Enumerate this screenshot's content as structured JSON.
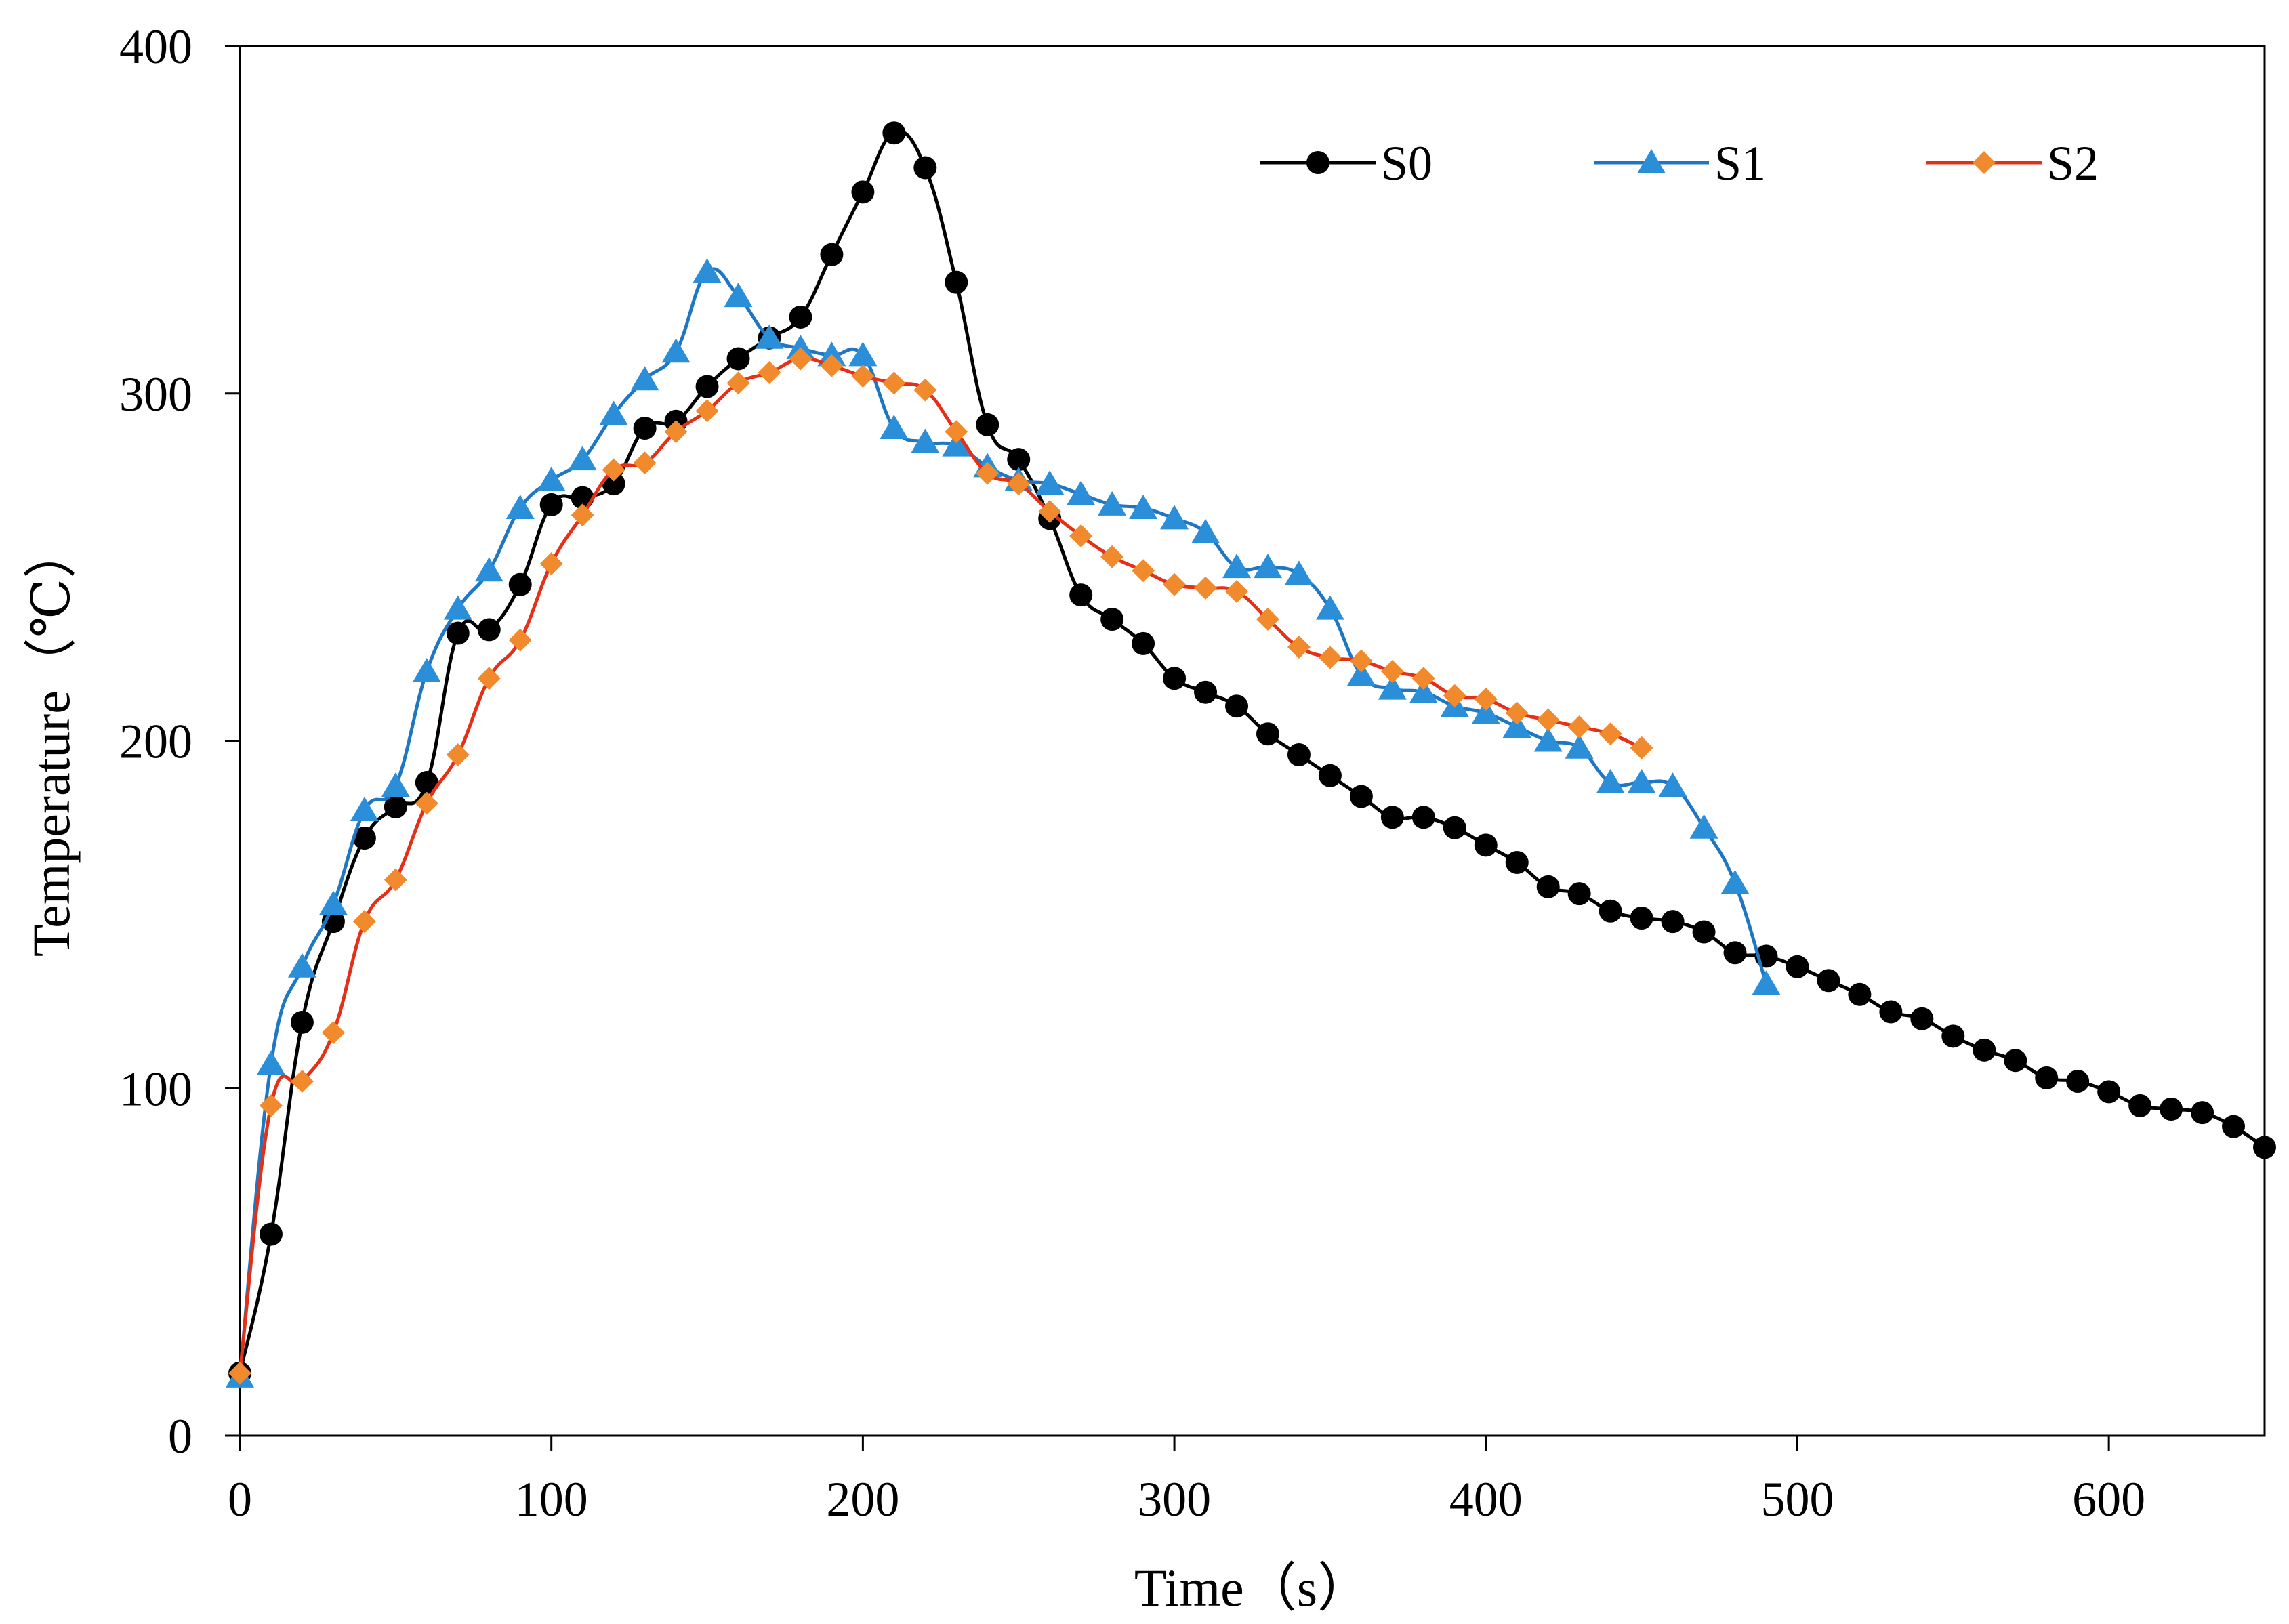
{
  "chart_data": {
    "type": "line",
    "title": "",
    "xlabel": "Time（s）",
    "ylabel": "Temperature（℃）",
    "xlim": [
      0,
      650
    ],
    "ylim": [
      0,
      400
    ],
    "xticks": [
      0,
      100,
      200,
      300,
      400,
      500,
      600
    ],
    "yticks": [
      0,
      100,
      200,
      300,
      400
    ],
    "grid": false,
    "legend_position": "top-right",
    "series": [
      {
        "name": "S0",
        "color": "#000000",
        "marker": "circle",
        "x": [
          0,
          10,
          20,
          30,
          40,
          50,
          60,
          70,
          80,
          90,
          100,
          110,
          120,
          130,
          140,
          150,
          160,
          170,
          180,
          190,
          200,
          210,
          220,
          230,
          240,
          250,
          260,
          270,
          280,
          290,
          300,
          310,
          320,
          330,
          340,
          350,
          360,
          370,
          380,
          390,
          400,
          410,
          420,
          430,
          440,
          450,
          460,
          470,
          480,
          490,
          500,
          510,
          520,
          530,
          540,
          550,
          560,
          570,
          580,
          590,
          600,
          610,
          620,
          630,
          640,
          650
        ],
        "y": [
          18,
          58,
          119,
          148,
          172,
          181,
          188,
          231,
          232,
          245,
          268,
          270,
          274,
          290,
          292,
          302,
          310,
          316,
          322,
          340,
          358,
          375,
          365,
          332,
          291,
          281,
          264,
          242,
          235,
          228,
          218,
          214,
          210,
          202,
          196,
          190,
          184,
          178,
          178,
          175,
          170,
          165,
          158,
          156,
          151,
          149,
          148,
          145,
          139,
          138,
          135,
          131,
          127,
          122,
          120,
          115,
          111,
          108,
          103,
          102,
          99,
          95,
          94,
          93,
          89,
          83
        ]
      },
      {
        "name": "S1",
        "color": "#1f77c4",
        "marker": "triangle",
        "x": [
          0,
          10,
          20,
          30,
          40,
          50,
          60,
          70,
          80,
          90,
          100,
          110,
          120,
          130,
          140,
          150,
          160,
          170,
          180,
          190,
          200,
          210,
          220,
          230,
          240,
          250,
          260,
          270,
          280,
          290,
          300,
          310,
          320,
          330,
          340,
          350,
          360,
          370,
          380,
          390,
          400,
          410,
          420,
          430,
          440,
          450,
          460,
          470,
          480,
          490
        ],
        "y": [
          17,
          107,
          135,
          153,
          180,
          187,
          220,
          238,
          249,
          267,
          275,
          281,
          294,
          304,
          312,
          335,
          328,
          316,
          313,
          311,
          311,
          290,
          286,
          285,
          279,
          275,
          274,
          271,
          268,
          267,
          264,
          260,
          250,
          250,
          248,
          238,
          219,
          215,
          214,
          210,
          208,
          204,
          200,
          198,
          188,
          188,
          187,
          175,
          159,
          130
        ]
      },
      {
        "name": "S2",
        "color": "#e53018",
        "marker": "diamond",
        "x": [
          0,
          10,
          20,
          30,
          40,
          50,
          60,
          70,
          80,
          90,
          100,
          110,
          120,
          130,
          140,
          150,
          160,
          170,
          180,
          190,
          200,
          210,
          220,
          230,
          240,
          250,
          260,
          270,
          280,
          290,
          300,
          310,
          320,
          330,
          340,
          350,
          360,
          370,
          380,
          390,
          400,
          410,
          420,
          430,
          440,
          450
        ],
        "y": [
          18,
          95,
          102,
          116,
          148,
          160,
          182,
          196,
          218,
          229,
          251,
          265,
          278,
          280,
          289,
          295,
          303,
          306,
          310,
          308,
          305,
          303,
          301,
          289,
          277,
          274,
          266,
          259,
          253,
          249,
          245,
          244,
          243,
          235,
          227,
          224,
          223,
          220,
          218,
          213,
          212,
          208,
          206,
          204,
          202,
          198
        ]
      }
    ]
  }
}
